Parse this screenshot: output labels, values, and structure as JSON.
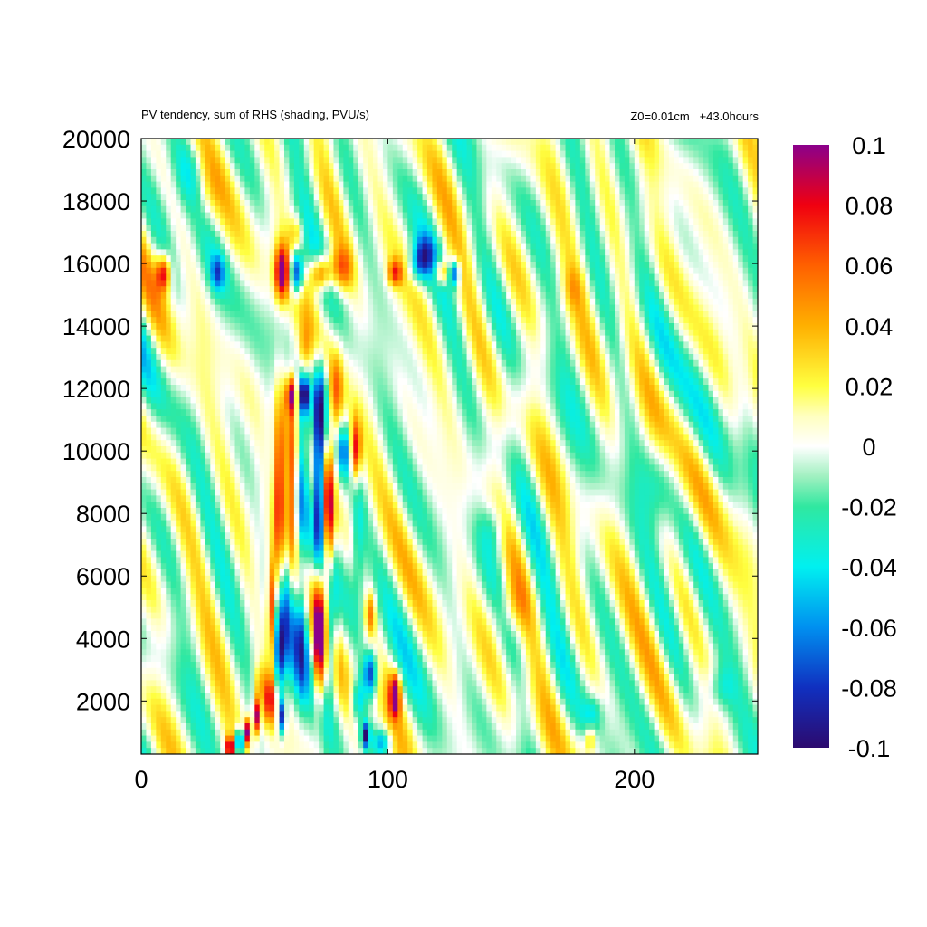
{
  "chart_data": {
    "type": "heatmap",
    "title": "PV tendency, sum of RHS (shading, PVU/s)",
    "subtitle": "Z0=0.01cm   +43.0hours",
    "xlim": [
      0,
      250
    ],
    "ylim": [
      300,
      20000
    ],
    "x_ticks": [
      0,
      100,
      200
    ],
    "y_ticks": [
      2000,
      4000,
      6000,
      8000,
      10000,
      12000,
      14000,
      16000,
      18000,
      20000
    ],
    "colorbar": {
      "min": -0.1,
      "max": 0.1,
      "ticks": [
        0.1,
        0.08,
        0.06,
        0.04,
        0.02,
        0,
        -0.02,
        -0.04,
        -0.06,
        -0.08,
        -0.1
      ],
      "stops": [
        {
          "v": -0.1,
          "color": "#2c0a6e"
        },
        {
          "v": -0.08,
          "color": "#1030c0"
        },
        {
          "v": -0.06,
          "color": "#0090f0"
        },
        {
          "v": -0.04,
          "color": "#00f0f0"
        },
        {
          "v": -0.02,
          "color": "#30e8a0"
        },
        {
          "v": -0.01,
          "color": "#a0f0c0"
        },
        {
          "v": 0,
          "color": "#ffffff"
        },
        {
          "v": 0.01,
          "color": "#ffffc0"
        },
        {
          "v": 0.02,
          "color": "#ffff40"
        },
        {
          "v": 0.04,
          "color": "#ffb000"
        },
        {
          "v": 0.06,
          "color": "#ff6000"
        },
        {
          "v": 0.08,
          "color": "#f00010"
        },
        {
          "v": 0.1,
          "color": "#8b008b"
        }
      ]
    },
    "features": [
      {
        "x": 9,
        "y": 15700,
        "sx": 2,
        "sy": 400,
        "v": 0.08
      },
      {
        "x": 31,
        "y": 15700,
        "sx": 2,
        "sy": 400,
        "v": -0.05
      },
      {
        "x": 57,
        "y": 15700,
        "sx": 2,
        "sy": 600,
        "v": 0.1
      },
      {
        "x": 63,
        "y": 15700,
        "sx": 2,
        "sy": 500,
        "v": -0.1
      },
      {
        "x": 73,
        "y": 15700,
        "sx": 3,
        "sy": 400,
        "v": 0.08
      },
      {
        "x": 81,
        "y": 15800,
        "sx": 3,
        "sy": 500,
        "v": 0.05
      },
      {
        "x": 103,
        "y": 15700,
        "sx": 2,
        "sy": 300,
        "v": 0.06
      },
      {
        "x": 113,
        "y": 15900,
        "sx": 3,
        "sy": 400,
        "v": -0.05
      },
      {
        "x": 122,
        "y": 15700,
        "sx": 2,
        "sy": 300,
        "v": 0.06
      },
      {
        "x": 127,
        "y": 15700,
        "sx": 1.5,
        "sy": 300,
        "v": -0.08
      },
      {
        "x": 63,
        "y": 17000,
        "sx": 2,
        "sy": 400,
        "v": 0.03
      },
      {
        "x": 61,
        "y": 11800,
        "sx": 1.5,
        "sy": 400,
        "v": 0.08
      },
      {
        "x": 66,
        "y": 11800,
        "sx": 1.5,
        "sy": 400,
        "v": -0.08
      },
      {
        "x": 73,
        "y": 11700,
        "sx": 2,
        "sy": 900,
        "v": -0.05
      },
      {
        "x": 79,
        "y": 11800,
        "sx": 2,
        "sy": 900,
        "v": 0.05
      },
      {
        "x": 66,
        "y": 13200,
        "sx": 2,
        "sy": 600,
        "v": 0.04
      },
      {
        "x": 56,
        "y": 9000,
        "sx": 1.5,
        "sy": 2000,
        "v": 0.08
      },
      {
        "x": 61,
        "y": 8000,
        "sx": 2,
        "sy": 2400,
        "v": 0.1
      },
      {
        "x": 65,
        "y": 9500,
        "sx": 2,
        "sy": 1800,
        "v": -0.06
      },
      {
        "x": 72,
        "y": 9000,
        "sx": 1.5,
        "sy": 2000,
        "v": -0.1
      },
      {
        "x": 76,
        "y": 8000,
        "sx": 1.5,
        "sy": 1500,
        "v": 0.09
      },
      {
        "x": 82,
        "y": 10000,
        "sx": 1.5,
        "sy": 600,
        "v": -0.06
      },
      {
        "x": 87,
        "y": 10000,
        "sx": 1.5,
        "sy": 700,
        "v": 0.08
      },
      {
        "x": 60,
        "y": 5500,
        "sx": 2.5,
        "sy": 1600,
        "v": -0.1
      },
      {
        "x": 53,
        "y": 5000,
        "sx": 1.2,
        "sy": 1100,
        "v": 0.08
      },
      {
        "x": 56,
        "y": 3500,
        "sx": 1.5,
        "sy": 900,
        "v": -0.07
      },
      {
        "x": 65,
        "y": 4000,
        "sx": 2,
        "sy": 1300,
        "v": -0.07
      },
      {
        "x": 72,
        "y": 4000,
        "sx": 1.5,
        "sy": 1500,
        "v": 0.1
      },
      {
        "x": 77,
        "y": 4000,
        "sx": 1.5,
        "sy": 1200,
        "v": -0.06
      },
      {
        "x": 48,
        "y": 2500,
        "sx": 1.5,
        "sy": 500,
        "v": 0.04
      },
      {
        "x": 52,
        "y": 2000,
        "sx": 1.5,
        "sy": 600,
        "v": 0.08
      },
      {
        "x": 47,
        "y": 1500,
        "sx": 1,
        "sy": 400,
        "v": 0.1
      },
      {
        "x": 57,
        "y": 1500,
        "sx": 1,
        "sy": 400,
        "v": -0.09
      },
      {
        "x": 43,
        "y": 1000,
        "sx": 1,
        "sy": 300,
        "v": 0.1
      },
      {
        "x": 40,
        "y": 700,
        "sx": 1.2,
        "sy": 300,
        "v": -0.1
      },
      {
        "x": 36,
        "y": 500,
        "sx": 1.2,
        "sy": 250,
        "v": 0.1
      },
      {
        "x": 93,
        "y": 2900,
        "sx": 2,
        "sy": 500,
        "v": -0.08
      },
      {
        "x": 88,
        "y": 2000,
        "sx": 2,
        "sy": 500,
        "v": -0.05
      },
      {
        "x": 103,
        "y": 2400,
        "sx": 1.5,
        "sy": 400,
        "v": 0.08
      },
      {
        "x": 103,
        "y": 1800,
        "sx": 1.5,
        "sy": 300,
        "v": 0.04
      },
      {
        "x": 91,
        "y": 900,
        "sx": 1.2,
        "sy": 300,
        "v": -0.1
      },
      {
        "x": 98,
        "y": 700,
        "sx": 2.5,
        "sy": 300,
        "v": -0.05
      },
      {
        "x": 93,
        "y": 4800,
        "sx": 1.5,
        "sy": 500,
        "v": 0.05
      },
      {
        "x": 88,
        "y": 7000,
        "sx": 2,
        "sy": 1500,
        "v": -0.03
      },
      {
        "x": 150,
        "y": 5000,
        "sx": 5,
        "sy": 700,
        "v": 0.03
      },
      {
        "x": 143,
        "y": 7500,
        "sx": 4,
        "sy": 600,
        "v": -0.025
      },
      {
        "x": 210,
        "y": 9000,
        "sx": 5,
        "sy": 900,
        "v": -0.02
      },
      {
        "x": 182,
        "y": 800,
        "sx": 1.5,
        "sy": 300,
        "v": 0.04
      },
      {
        "x": 183,
        "y": 1600,
        "sx": 3,
        "sy": 400,
        "v": -0.03
      },
      {
        "x": 235,
        "y": 2400,
        "sx": 4,
        "sy": 500,
        "v": -0.025
      },
      {
        "x": 175,
        "y": 15200,
        "sx": 3,
        "sy": 500,
        "v": 0.02
      },
      {
        "x": 20,
        "y": 19000,
        "sx": 5,
        "sy": 900,
        "v": -0.02
      },
      {
        "x": 25,
        "y": 18000,
        "sx": 4,
        "sy": 800,
        "v": 0.02
      },
      {
        "x": 115,
        "y": 16400,
        "sx": 3,
        "sy": 400,
        "v": -0.04
      }
    ]
  }
}
